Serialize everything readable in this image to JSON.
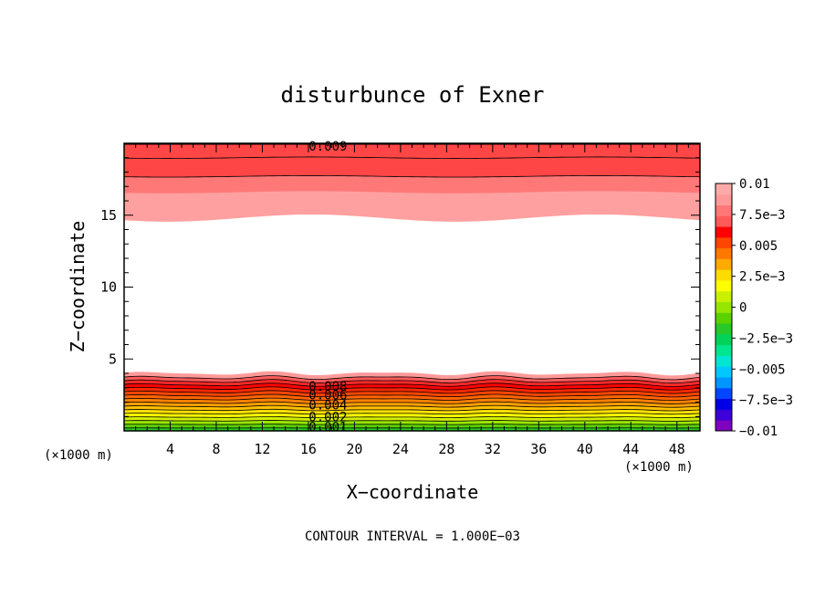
{
  "chart_data": {
    "type": "heatmap",
    "title": "disturbunce of Exner",
    "xlabel": "X−coordinate",
    "ylabel": "Z−coordinate",
    "x_unit": "(×1000 m)",
    "y_unit": "(×1000 m)",
    "xlim": [
      0,
      50
    ],
    "ylim": [
      0,
      20
    ],
    "x_ticks": [
      4,
      8,
      12,
      16,
      20,
      24,
      28,
      32,
      36,
      40,
      44,
      48
    ],
    "x_tick_labels": [
      "4",
      "8",
      "12",
      "16",
      "20",
      "24",
      "28",
      "32",
      "36",
      "40",
      "44",
      "48"
    ],
    "y_ticks": [
      5,
      10,
      15
    ],
    "y_tick_labels": [
      "5",
      "10",
      "15"
    ],
    "footer": "CONTOUR INTERVAL = 1.000E−03",
    "colorbar": {
      "range": [
        -0.01,
        0.01
      ],
      "labels": [
        "0.01",
        "7.5e−3",
        "0.005",
        "2.5e−3",
        "0",
        "−2.5e−3",
        "−0.005",
        "−7.5e−3",
        "−0.01"
      ],
      "colors": [
        "#7f00bf",
        "#3c00d8",
        "#0000e6",
        "#0046ff",
        "#0096ff",
        "#00c8ff",
        "#00e6d2",
        "#00e68c",
        "#00d25a",
        "#28c828",
        "#5ad200",
        "#96e600",
        "#c8f000",
        "#ffff00",
        "#ffdc00",
        "#ffaa00",
        "#ff7800",
        "#ff4600",
        "#ff0000",
        "#ff5a5a",
        "#ff7878",
        "#ff9a9a",
        "#ffaaaa"
      ]
    },
    "contour_labels": [
      {
        "text": "0.009",
        "x": 17.7,
        "y": 19.8
      },
      {
        "text": "0.008",
        "x": 17.7,
        "y": 3.1
      },
      {
        "text": "0.006",
        "x": 17.7,
        "y": 2.5
      },
      {
        "text": "0.004",
        "x": 17.7,
        "y": 1.8
      },
      {
        "text": "0.002",
        "x": 17.7,
        "y": 1.0
      },
      {
        "text": "0.001",
        "x": 17.7,
        "y": 0.3
      }
    ],
    "bottom_layer": {
      "levels": [
        0.0085,
        0.008,
        0.0075,
        0.007,
        0.0065,
        0.006,
        0.0055,
        0.005,
        0.0045,
        0.004,
        0.0035,
        0.003,
        0.0025,
        0.002,
        0.0015,
        0.001
      ],
      "tops": [
        4.0,
        3.7,
        3.45,
        3.2,
        2.95,
        2.7,
        2.45,
        2.2,
        1.95,
        1.7,
        1.45,
        1.2,
        0.95,
        0.7,
        0.45,
        0.2
      ],
      "colors": [
        "#ff9a9a",
        "#ff5a5a",
        "#ff2a2a",
        "#ff0000",
        "#ff2800",
        "#ff4600",
        "#ff6400",
        "#ff8200",
        "#ffa000",
        "#ffc000",
        "#ffe000",
        "#ffff00",
        "#d2f000",
        "#9ae600",
        "#5ad200",
        "#28c828"
      ]
    },
    "top_layer": {
      "levels": [
        0.0085,
        0.009,
        0.0095
      ],
      "bottoms": [
        14.8,
        16.6,
        17.7
      ],
      "colors": [
        "#ffa0a0",
        "#ff7878",
        "#ff4646"
      ]
    },
    "top_layer_contours": [
      {
        "level": 0.009,
        "z": 17.7
      },
      {
        "level": 0.0095,
        "z": 19.0
      }
    ]
  }
}
